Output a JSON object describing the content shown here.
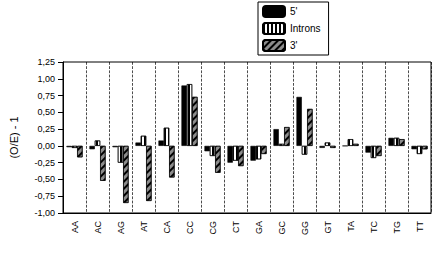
{
  "chart_data": {
    "type": "bar",
    "y_label": "(O/E) - 1",
    "categories": [
      "AA",
      "AC",
      "AG",
      "AT",
      "CA",
      "CC",
      "CG",
      "CT",
      "GA",
      "GC",
      "GG",
      "GT",
      "TA",
      "TC",
      "TG",
      "TT"
    ],
    "series": [
      {
        "name": "5'",
        "color": "#000000",
        "values": [
          -0.02,
          -0.05,
          -0.02,
          0.05,
          0.08,
          0.9,
          -0.08,
          -0.25,
          -0.22,
          0.25,
          0.73,
          -0.03,
          0.0,
          -0.1,
          0.12,
          -0.05
        ]
      },
      {
        "name": "Introns",
        "color": "#ffffff",
        "values": [
          -0.03,
          0.08,
          -0.25,
          0.15,
          0.27,
          0.92,
          -0.15,
          -0.22,
          -0.2,
          0.03,
          -0.13,
          0.05,
          0.1,
          -0.18,
          0.12,
          -0.12
        ]
      },
      {
        "name": "3'",
        "color": "#8c8c8c",
        "values": [
          -0.17,
          -0.52,
          -0.85,
          -0.82,
          -0.47,
          0.73,
          -0.4,
          -0.3,
          -0.12,
          0.28,
          0.55,
          -0.03,
          0.03,
          -0.15,
          0.1,
          -0.05
        ]
      }
    ],
    "ylim": [
      -1,
      1.25
    ],
    "yticks": [
      {
        "value": -1,
        "label": "-1,00"
      },
      {
        "value": -0.75,
        "label": "-0,75"
      },
      {
        "value": -0.5,
        "label": "-0,50"
      },
      {
        "value": -0.25,
        "label": "-0,25"
      },
      {
        "value": 0,
        "label": "0,00"
      },
      {
        "value": 0.25,
        "label": "0,25"
      },
      {
        "value": 0.5,
        "label": "0,50"
      },
      {
        "value": 0.75,
        "label": "0,75"
      },
      {
        "value": 1,
        "label": "1,00"
      },
      {
        "value": 1.25,
        "label": "1,25"
      }
    ],
    "grid": true,
    "legend": "top"
  }
}
